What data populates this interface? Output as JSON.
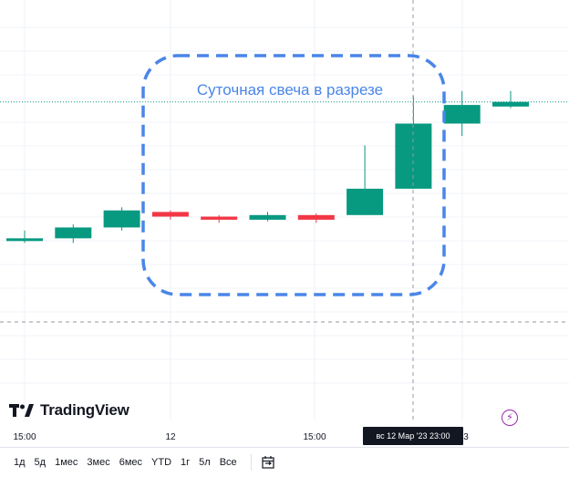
{
  "annotation": {
    "text": "Суточная свеча в разрезе"
  },
  "brand": {
    "name": "TradingView"
  },
  "time_axis": {
    "labels": [
      "15:00",
      "12",
      "15:00",
      "3"
    ],
    "crosshair_label": "вс 12 Мар '23   23:00"
  },
  "toolbar": {
    "ranges": [
      "1д",
      "5д",
      "1мес",
      "3мес",
      "6мес",
      "YTD",
      "1г",
      "5л",
      "Все"
    ],
    "calendar_icon": "calendar-goto-icon"
  },
  "colors": {
    "up": "#089981",
    "down": "#f23645",
    "annotation": "#4a86e8",
    "crosshair": "#9598a1",
    "bolt": "#9c27b0"
  },
  "chart_data": {
    "type": "candlestick",
    "title": "",
    "xlabel": "",
    "ylabel": "",
    "grid": true,
    "candles": [
      {
        "o": 180,
        "h": 186,
        "l": 178,
        "c": 181
      },
      {
        "o": 181,
        "h": 190,
        "l": 178,
        "c": 188
      },
      {
        "o": 188,
        "h": 201,
        "l": 186,
        "c": 199
      },
      {
        "o": 198,
        "h": 199,
        "l": 193,
        "c": 195
      },
      {
        "o": 195,
        "h": 196,
        "l": 191,
        "c": 193
      },
      {
        "o": 193,
        "h": 198,
        "l": 192,
        "c": 196
      },
      {
        "o": 196,
        "h": 197,
        "l": 191,
        "c": 193
      },
      {
        "o": 196,
        "h": 241,
        "l": 196,
        "c": 213
      },
      {
        "o": 213,
        "h": 273,
        "l": 213,
        "c": 255
      },
      {
        "o": 255,
        "h": 276,
        "l": 247,
        "c": 267
      },
      {
        "o": 266,
        "h": 276,
        "l": 265,
        "c": 269
      }
    ],
    "last_price_line": 269
  }
}
